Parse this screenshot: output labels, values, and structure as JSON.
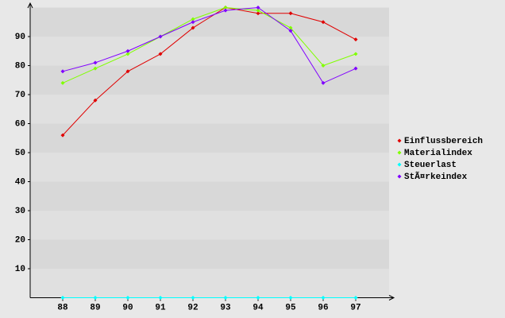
{
  "chart_data": {
    "type": "line",
    "categories": [
      "88",
      "89",
      "90",
      "91",
      "92",
      "93",
      "94",
      "95",
      "96",
      "97"
    ],
    "series": [
      {
        "name": "Einflussbereich",
        "color": "#e00000",
        "values": [
          56,
          68,
          78,
          84,
          93,
          100,
          98,
          98,
          95,
          89
        ]
      },
      {
        "name": "Materialindex",
        "color": "#80ff00",
        "values": [
          74,
          79,
          84,
          90,
          96,
          100,
          99,
          93,
          80,
          84
        ]
      },
      {
        "name": "Steuerlast",
        "color": "#00ffff",
        "values": [
          0,
          0,
          0,
          0,
          0,
          0,
          0,
          0,
          0,
          0
        ]
      },
      {
        "name": "StÃ¤rkeindex",
        "color": "#8000ff",
        "values": [
          78,
          81,
          85,
          90,
          95,
          99,
          100,
          92,
          74,
          79
        ]
      }
    ],
    "ylim": [
      0,
      100
    ],
    "yticks": [
      10,
      20,
      30,
      40,
      50,
      60,
      70,
      80,
      90
    ],
    "grid": true,
    "legend": "right"
  }
}
